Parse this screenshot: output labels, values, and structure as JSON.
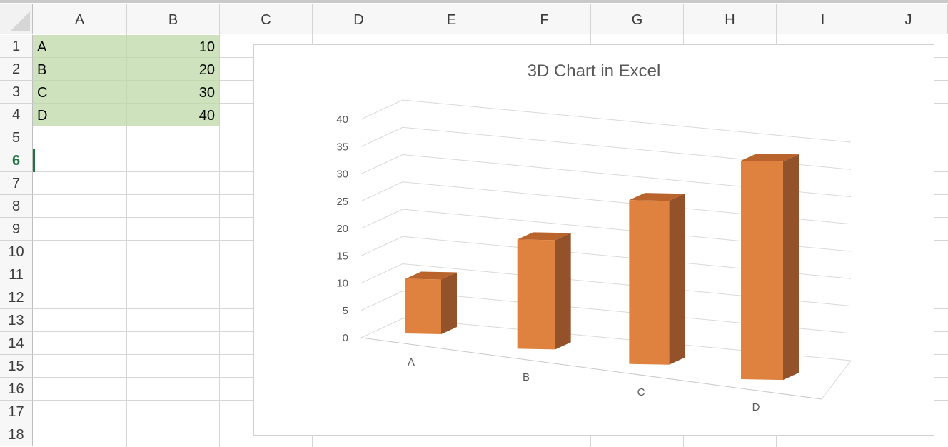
{
  "spreadsheet": {
    "columns": [
      "A",
      "B",
      "C",
      "D",
      "E",
      "F",
      "G",
      "H",
      "I",
      "J"
    ],
    "rows": [
      "1",
      "2",
      "3",
      "4",
      "5",
      "6",
      "7",
      "8",
      "9",
      "10",
      "11",
      "12",
      "13",
      "14",
      "15",
      "16",
      "17",
      "18"
    ],
    "active_row": "6",
    "data_cells": [
      {
        "label": "A",
        "value": "10"
      },
      {
        "label": "B",
        "value": "20"
      },
      {
        "label": "C",
        "value": "30"
      },
      {
        "label": "D",
        "value": "40"
      }
    ],
    "data_fill_color": "#cde2bd",
    "active_color": "#217346"
  },
  "chart": {
    "title": "3D Chart in Excel"
  },
  "chart_data": {
    "type": "bar",
    "style": "3d-column",
    "title": "3D Chart in Excel",
    "categories": [
      "A",
      "B",
      "C",
      "D"
    ],
    "values": [
      10,
      20,
      30,
      40
    ],
    "ylim": [
      0,
      40
    ],
    "yticks": [
      "0",
      "5",
      "10",
      "15",
      "20",
      "25",
      "30",
      "35",
      "40"
    ],
    "grid": true,
    "legend": "none",
    "bar_color": "#e0823f",
    "bar_side_color": "#93522a",
    "bar_top_color": "#b8642c"
  }
}
